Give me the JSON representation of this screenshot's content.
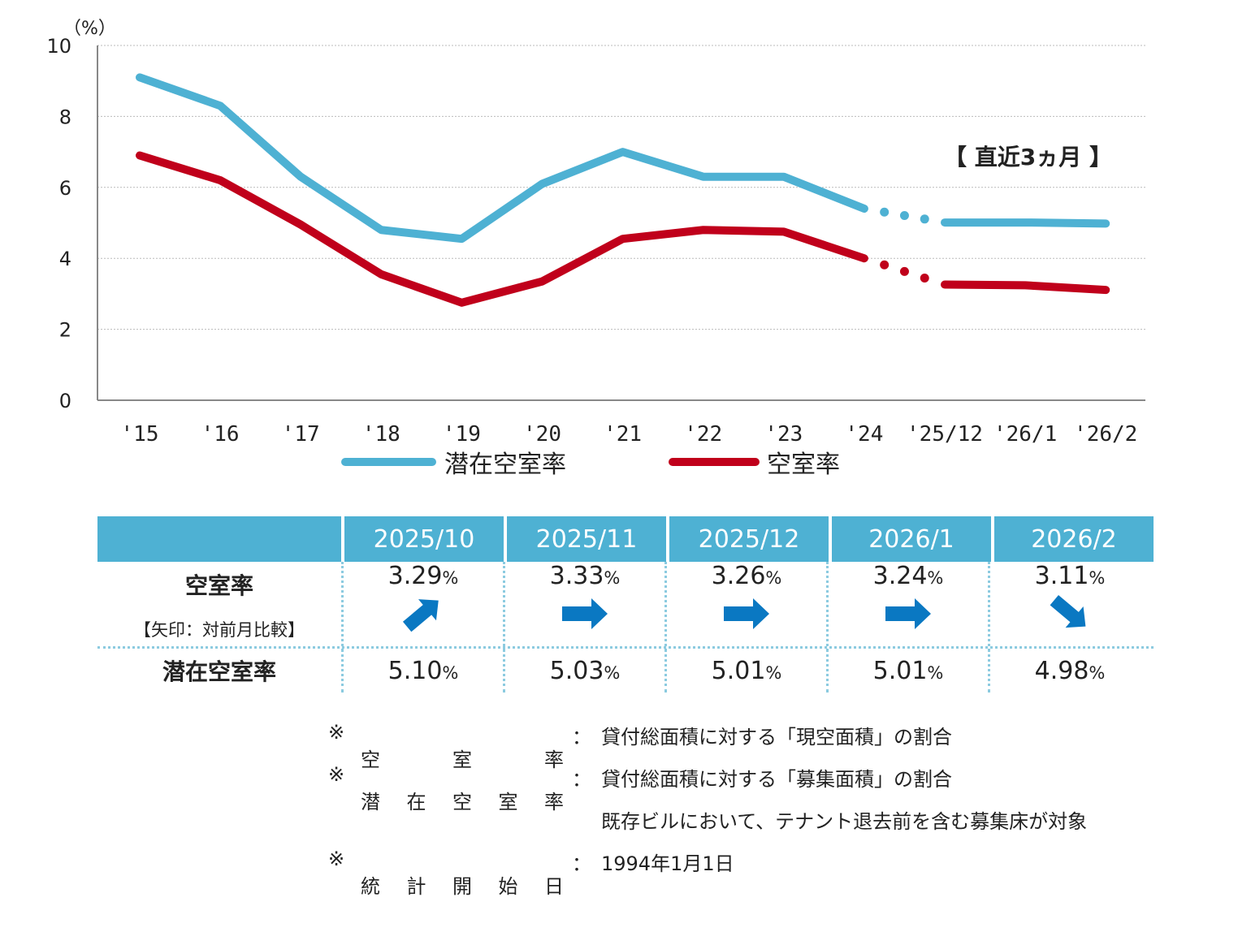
{
  "chart_data": {
    "type": "line",
    "unit_label": "（%）",
    "categories": [
      "'15",
      "'16",
      "'17",
      "'18",
      "'19",
      "'20",
      "'21",
      "'22",
      "'23",
      "'24",
      "'25/12",
      "'26/1",
      "'26/2"
    ],
    "ylim": [
      0,
      10
    ],
    "yticks": [
      "0",
      "2",
      "4",
      "6",
      "8",
      "10"
    ],
    "grid": true,
    "recent_label": "【 直近3ヵ月 】",
    "series": [
      {
        "name": "潜在空室率",
        "color": "#4eb1d3",
        "values": [
          9.1,
          8.3,
          6.3,
          4.8,
          4.55,
          6.1,
          7.0,
          6.3,
          6.3,
          5.4,
          5.01,
          5.01,
          4.98
        ]
      },
      {
        "name": "空室率",
        "color": "#c0001b",
        "values": [
          6.9,
          6.2,
          4.95,
          3.55,
          2.75,
          3.35,
          4.55,
          4.8,
          4.75,
          4.0,
          3.26,
          3.24,
          3.11
        ]
      }
    ],
    "dotted_segment_from_index": 9
  },
  "table": {
    "months": [
      "2025/10",
      "2025/11",
      "2025/12",
      "2026/1",
      "2026/2"
    ],
    "vacancy_label": "空室率",
    "arrow_note": "【矢印：対前月比較】",
    "vacancy": [
      "3.29",
      "3.33",
      "3.26",
      "3.24",
      "3.11"
    ],
    "arrows": [
      "up-right",
      "right",
      "right",
      "right",
      "down-right"
    ],
    "potential_label": "潜在空室率",
    "potential": [
      "5.10",
      "5.03",
      "5.01",
      "5.01",
      "4.98"
    ],
    "pct": "%"
  },
  "notes": [
    {
      "mark": "※",
      "label": [
        "空",
        "室",
        "率"
      ],
      "colon": "：",
      "text": "貸付総面積に対する「現空面積」の割合"
    },
    {
      "mark": "※",
      "label": [
        "潜",
        "在",
        "空",
        "室",
        "率"
      ],
      "colon": "：",
      "text": "貸付総面積に対する「募集面積」の割合"
    },
    {
      "mark": "",
      "label": [],
      "colon": "",
      "text": "既存ビルにおいて、テナント退去前を含む募集床が対象"
    },
    {
      "mark": "※",
      "label": [
        "統",
        "計",
        "開",
        "始",
        "日"
      ],
      "colon": "：",
      "text": "1994年1月1日"
    }
  ],
  "colors": {
    "header": "#4eb1d3",
    "arrow": "#0a78c2"
  }
}
